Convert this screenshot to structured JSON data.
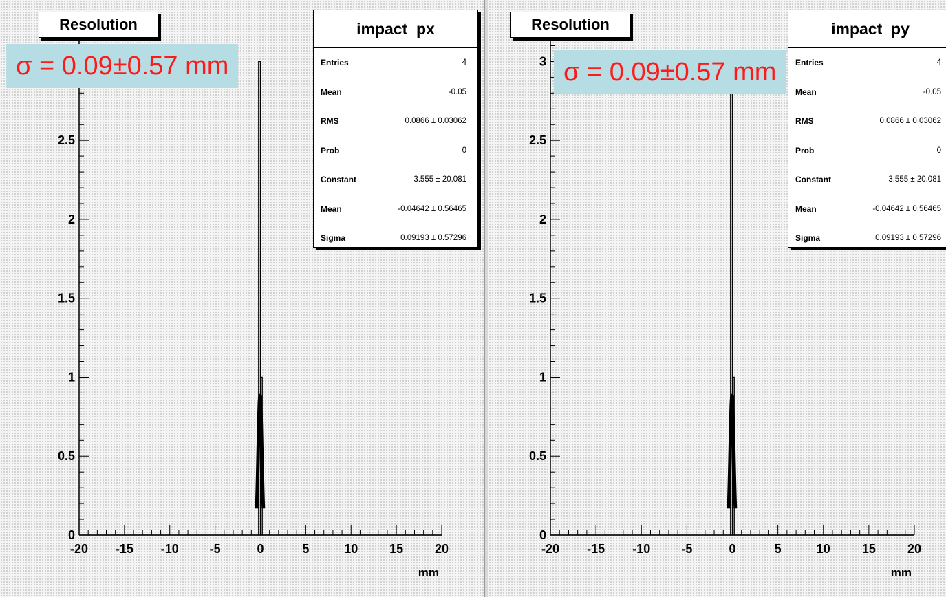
{
  "panels": [
    {
      "title": "Resolution",
      "stats": {
        "name": "impact_px",
        "rows": [
          {
            "label": "Entries",
            "value": "4"
          },
          {
            "label": "Mean",
            "value": "-0.05"
          },
          {
            "label": "RMS",
            "value": "0.0866 ± 0.03062"
          },
          {
            "label": "Prob",
            "value": "0"
          },
          {
            "label": "Constant",
            "value": "3.555 ± 20.081"
          },
          {
            "label": "Mean",
            "value": "-0.04642 ± 0.56465"
          },
          {
            "label": "Sigma",
            "value": "0.09193 ± 0.57296"
          }
        ]
      },
      "annotation": "σ = 0.09±0.57 mm"
    },
    {
      "title": "Resolution",
      "stats": {
        "name": "impact_py",
        "rows": [
          {
            "label": "Entries",
            "value": "4"
          },
          {
            "label": "Mean",
            "value": "-0.05"
          },
          {
            "label": "RMS",
            "value": "0.0866 ± 0.03062"
          },
          {
            "label": "Prob",
            "value": "0"
          },
          {
            "label": "Constant",
            "value": "3.555 ± 20.081"
          },
          {
            "label": "Mean",
            "value": "-0.04642 ± 0.56465"
          },
          {
            "label": "Sigma",
            "value": "0.09193 ± 0.57296"
          }
        ]
      },
      "annotation": "σ = 0.09±0.57 mm"
    }
  ],
  "colors": {
    "annotation_text": "#ff1a1a",
    "annotation_bg": "#b7dde4",
    "frame_bg": "#f4f4f4"
  },
  "chart_data": [
    {
      "type": "bar",
      "name": "impact_px",
      "xlabel": "mm",
      "ylabel": "",
      "xlim": [
        -20,
        20
      ],
      "ylim": [
        0,
        3.15
      ],
      "x_ticks": [
        -20,
        -15,
        -10,
        -5,
        0,
        5,
        10,
        15,
        20
      ],
      "x_tick_labels": [
        "-20",
        "-15",
        "-10",
        "-5",
        "0",
        "5",
        "10",
        "15",
        "20"
      ],
      "y_ticks": [
        0,
        0.5,
        1,
        1.5,
        2,
        2.5
      ],
      "y_tick_labels": [
        "0",
        "0.5",
        "1",
        "1.5",
        "2",
        "2.5"
      ],
      "histogram": [
        {
          "x0": -0.2,
          "x1": 0.0,
          "count": 3
        },
        {
          "x0": 0.0,
          "x1": 0.2,
          "count": 1
        }
      ],
      "fit": {
        "function": "gaus",
        "constant": 3.555,
        "mean": -0.04642,
        "sigma": 0.09193
      }
    },
    {
      "type": "bar",
      "name": "impact_py",
      "xlabel": "mm",
      "ylabel": "",
      "xlim": [
        -20,
        20
      ],
      "ylim": [
        0,
        3.15
      ],
      "x_ticks": [
        -20,
        -15,
        -10,
        -5,
        0,
        5,
        10,
        15,
        20
      ],
      "x_tick_labels": [
        "-20",
        "-15",
        "-10",
        "-5",
        "0",
        "5",
        "10",
        "15",
        "20"
      ],
      "y_ticks": [
        0,
        0.5,
        1,
        1.5,
        2,
        2.5,
        3
      ],
      "y_tick_labels": [
        "0",
        "0.5",
        "1",
        "1.5",
        "2",
        "2.5",
        "3"
      ],
      "histogram": [
        {
          "x0": -0.2,
          "x1": 0.0,
          "count": 3
        },
        {
          "x0": 0.0,
          "x1": 0.2,
          "count": 1
        }
      ],
      "fit": {
        "function": "gaus",
        "constant": 3.555,
        "mean": -0.04642,
        "sigma": 0.09193
      }
    }
  ]
}
